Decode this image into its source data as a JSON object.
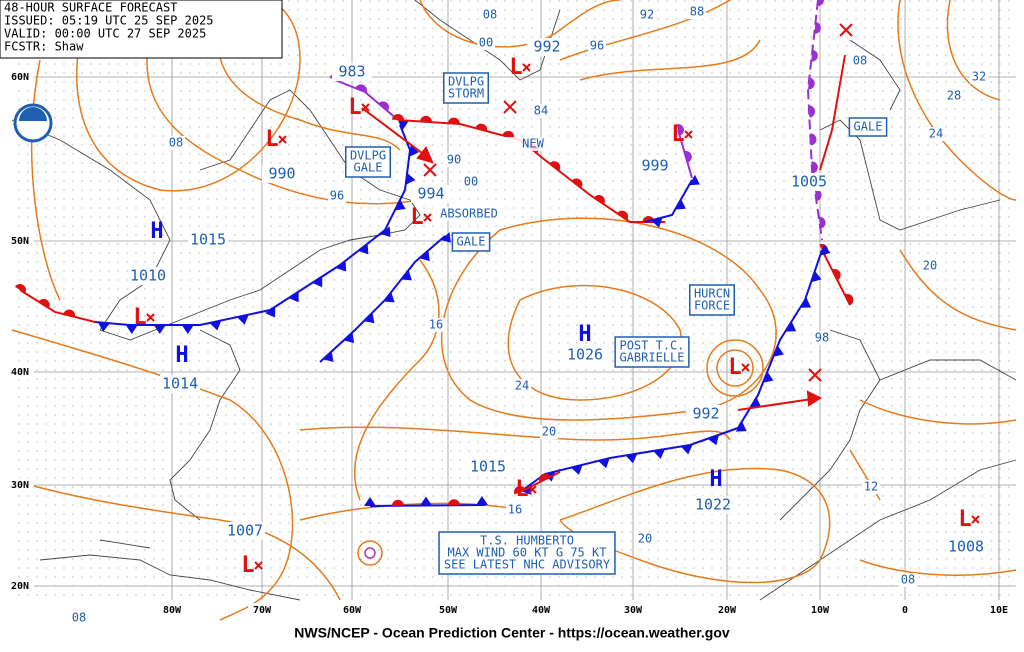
{
  "header": {
    "lines": [
      "48-HOUR SURFACE FORECAST",
      "ISSUED: 05:19 UTC 25 SEP 2025",
      "VALID:  00:00 UTC 27 SEP 2025",
      "FCSTR:  Shaw"
    ]
  },
  "latitude_labels": [
    "60N",
    "50N",
    "40N",
    "30N",
    "20N"
  ],
  "longitude_labels": [
    "80W",
    "70W",
    "60W",
    "50W",
    "40W",
    "30W",
    "20W",
    "10W",
    "0",
    "10E"
  ],
  "centers": [
    {
      "symbol": "L",
      "pressure": "983"
    },
    {
      "symbol": "L",
      "pressure": "990"
    },
    {
      "symbol": "H",
      "pressure": "1015"
    },
    {
      "symbol": "L",
      "pressure": "1010"
    },
    {
      "symbol": "H",
      "pressure": "1014"
    },
    {
      "symbol": "L",
      "pressure": "994"
    },
    {
      "symbol": "L",
      "pressure": "992"
    },
    {
      "symbol": "L",
      "pressure": "999"
    },
    {
      "pressure": "1005"
    },
    {
      "symbol": "H",
      "pressure": "1026"
    },
    {
      "symbol": "L",
      "pressure": "992"
    },
    {
      "symbol": "L",
      "pressure": "1015"
    },
    {
      "symbol": "H",
      "pressure": "1022"
    },
    {
      "symbol": "L",
      "pressure": "1007"
    },
    {
      "symbol": "L",
      "pressure": "1008"
    }
  ],
  "isobar_labels": [
    "08",
    "00",
    "92",
    "88",
    "96",
    "08",
    "96",
    "84",
    "90",
    "00",
    "16",
    "24",
    "20",
    "16",
    "20",
    "12",
    "08",
    "20",
    "24",
    "28",
    "32",
    "98",
    "08",
    "08"
  ],
  "boxed_labels": [
    {
      "lines": [
        "DVLPG",
        "STORM"
      ]
    },
    {
      "lines": [
        "DVLPG",
        "GALE"
      ]
    },
    {
      "lines": [
        "GALE"
      ]
    },
    {
      "lines": [
        "HURCN",
        "FORCE"
      ]
    },
    {
      "lines": [
        "POST T.C.",
        "GABRIELLE"
      ]
    },
    {
      "lines": [
        "GALE"
      ]
    },
    {
      "lines": [
        "T.S. HUMBERTO",
        "MAX WIND 60 KT G 75 KT",
        "SEE LATEST NHC ADVISORY"
      ]
    }
  ],
  "plain_labels": [
    "ABSORBED",
    "NEW"
  ],
  "footer": "NWS/NCEP - Ocean Prediction Center - https://ocean.weather.gov"
}
